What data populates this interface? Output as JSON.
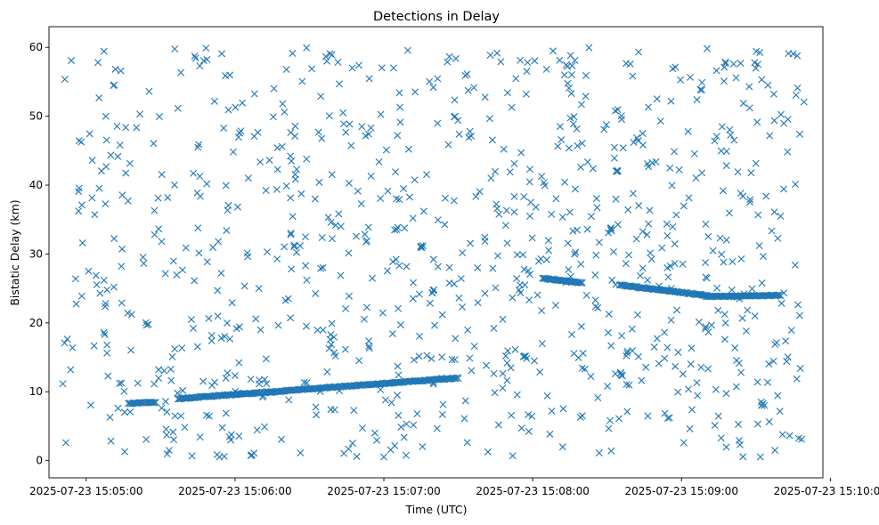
{
  "chart_data": {
    "type": "scatter",
    "title": "Detections in Delay",
    "xlabel": "Time (UTC)",
    "ylabel": "Bistatic Delay (km)",
    "marker": "x",
    "color": "#1f77b4",
    "grid": false,
    "xlim": [
      "2025-07-23 15:04:45",
      "2025-07-23 15:09:57"
    ],
    "ylim": [
      -2.5,
      63
    ],
    "xticks": [
      "2025-07-23 15:05:00",
      "2025-07-23 15:06:00",
      "2025-07-23 15:07:00",
      "2025-07-23 15:08:00",
      "2025-07-23 15:09:00",
      "2025-07-23 15:10:00"
    ],
    "yticks": [
      0,
      10,
      20,
      30,
      40,
      50,
      60
    ],
    "time_range": [
      "2025-07-23 15:04:50",
      "2025-07-23 15:09:50"
    ],
    "clutter_points": 900,
    "tracks": [
      {
        "t": [
          "2025-07-23 15:05:17",
          "2025-07-23 15:05:28"
        ],
        "delay": [
          8.3,
          8.5
        ]
      },
      {
        "t": [
          "2025-07-23 15:05:37",
          "2025-07-23 15:07:30"
        ],
        "delay": [
          9.0,
          12.0
        ]
      },
      {
        "t": [
          "2025-07-23 15:08:04",
          "2025-07-23 15:08:20"
        ],
        "delay": [
          26.5,
          25.8
        ]
      },
      {
        "t": [
          "2025-07-23 15:08:35",
          "2025-07-23 15:09:10"
        ],
        "delay": [
          25.5,
          24.0
        ]
      },
      {
        "t": [
          "2025-07-23 15:09:10",
          "2025-07-23 15:09:40"
        ],
        "delay": [
          23.8,
          24.0
        ]
      }
    ],
    "point_clusters": [
      {
        "t": "2025-07-23 15:06:07",
        "delay": 1.0
      },
      {
        "t": "2025-07-23 15:07:20",
        "delay": 24.5
      },
      {
        "t": "2025-07-23 15:07:15",
        "delay": 31.0
      },
      {
        "t": "2025-07-23 15:07:57",
        "delay": 15.0
      },
      {
        "t": "2025-07-23 15:08:32",
        "delay": 33.5
      },
      {
        "t": "2025-07-23 15:08:36",
        "delay": 12.5
      },
      {
        "t": "2025-07-23 15:08:34",
        "delay": 42.0
      },
      {
        "t": "2025-07-23 15:09:33",
        "delay": 8.3
      }
    ]
  }
}
